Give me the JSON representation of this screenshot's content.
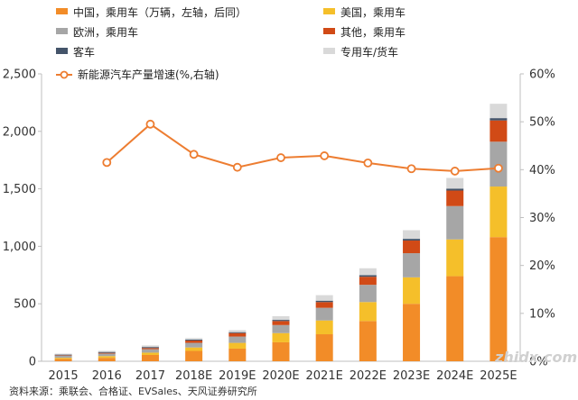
{
  "source": "资料来源：乘联会、合格证、EVSales、天风证券研究所",
  "watermark": "zhidx.com",
  "chart_data": {
    "type": "bar",
    "stacked": true,
    "categories": [
      "2015",
      "2016",
      "2017",
      "2018E",
      "2019E",
      "2020E",
      "2021E",
      "2022E",
      "2023E",
      "2024E",
      "2025E"
    ],
    "series": [
      {
        "name": "中国，乘用车（万辆，左轴，后同）",
        "color": "#f28c28",
        "values": [
          20,
          30,
          55,
          90,
          110,
          165,
          235,
          350,
          500,
          740,
          1080
        ]
      },
      {
        "name": "美国，乘用车",
        "color": "#f5bf2a",
        "values": [
          10,
          15,
          20,
          30,
          50,
          80,
          120,
          165,
          230,
          320,
          440
        ]
      },
      {
        "name": "欧洲，乘用车",
        "color": "#a6a6a6",
        "values": [
          18,
          22,
          30,
          40,
          55,
          70,
          110,
          150,
          210,
          290,
          390
        ]
      },
      {
        "name": "其他，乘用车",
        "color": "#d14a16",
        "values": [
          4,
          6,
          10,
          20,
          30,
          35,
          50,
          70,
          110,
          135,
          185
        ]
      },
      {
        "name": "客车",
        "color": "#44546a",
        "values": [
          6,
          8,
          9,
          8,
          8,
          10,
          12,
          14,
          15,
          17,
          20
        ]
      },
      {
        "name": "专用车/货车",
        "color": "#d9d9d9",
        "values": [
          8,
          10,
          14,
          14,
          18,
          32,
          48,
          60,
          75,
          93,
          125
        ]
      }
    ],
    "line": {
      "name": "新能源汽车产量增速(%,右轴)",
      "color": "#ed7d31",
      "values": [
        null,
        41.5,
        49.5,
        43.2,
        40.5,
        42.5,
        42.9,
        41.4,
        40.2,
        39.7,
        40.3
      ]
    },
    "y_left": {
      "min": 0,
      "max": 2500,
      "ticks": [
        "0",
        "500",
        "1,000",
        "1,500",
        "2,000",
        "2,500"
      ]
    },
    "y_right": {
      "min": 0,
      "max": 60,
      "ticks": [
        "0%",
        "10%",
        "20%",
        "30%",
        "40%",
        "50%",
        "60%"
      ]
    }
  }
}
